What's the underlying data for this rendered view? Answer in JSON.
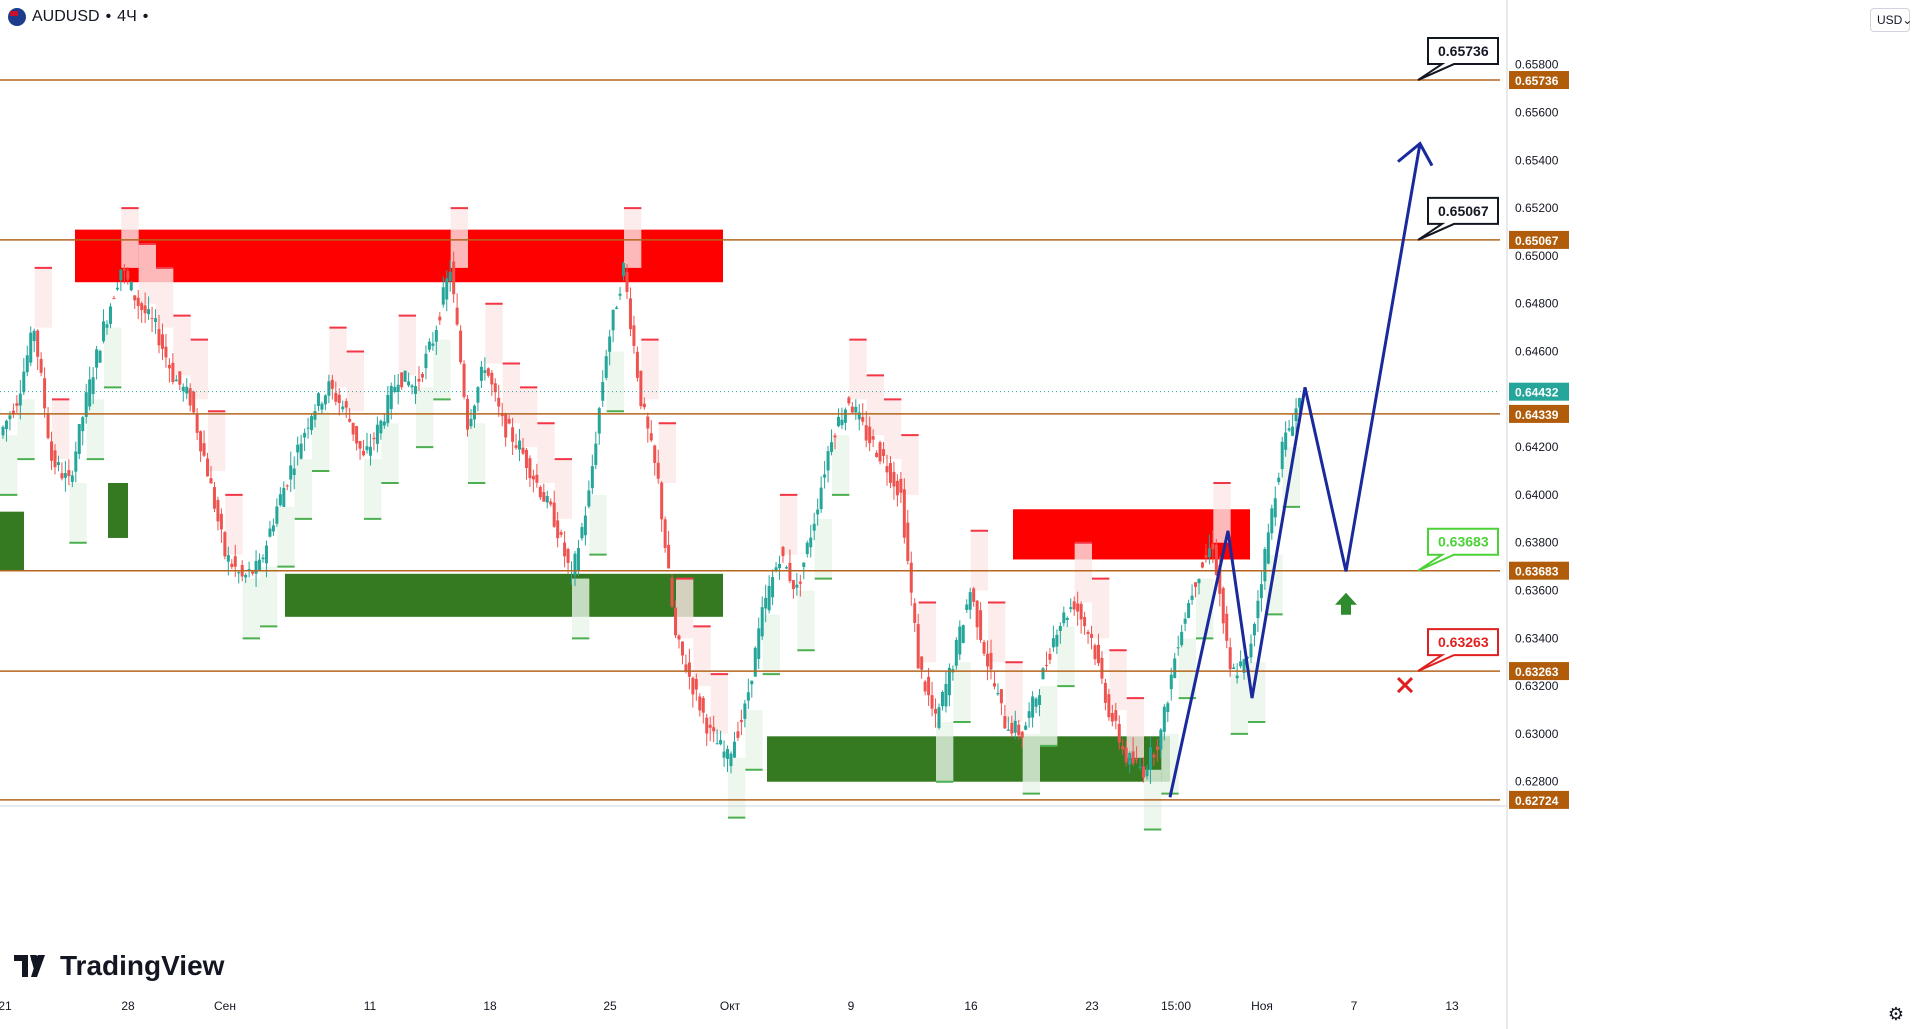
{
  "header": {
    "symbol": "AUDUSD",
    "dot": "•",
    "interval": "4Ч",
    "dot2": "•"
  },
  "currency_button": {
    "label": "USD",
    "icon": "chevron-down-icon"
  },
  "brand": {
    "text": "TradingView",
    "icon": "tradingview-logo-icon"
  },
  "settings": {
    "icon": "gear-icon"
  },
  "colors": {
    "level_line": "#b5651d",
    "level_tag": "#b05c0a",
    "supply": "#ff0000",
    "demand": "#357a21",
    "bull": "#26a69a",
    "bear": "#ef5350",
    "forecast": "#1a2a9c",
    "price_label": "#26a69a",
    "target_up": "#2e8b2e",
    "stop": "#e02020"
  },
  "chart_data": {
    "type": "candlestick",
    "symbol": "AUDUSD",
    "timeframe": "4Ч",
    "y_axis": {
      "min": 0.627,
      "max": 0.659,
      "ticks": [
        "0.65800",
        "0.65600",
        "0.65400",
        "0.65200",
        "0.65000",
        "0.64800",
        "0.64600",
        "0.64200",
        "0.64000",
        "0.63800",
        "0.63600",
        "0.63400",
        "0.63200",
        "0.63000",
        "0.62800"
      ]
    },
    "x_axis": {
      "ticks": [
        "21",
        "28",
        "Сен",
        "11",
        "18",
        "25",
        "Окт",
        "9",
        "16",
        "23",
        "15:00",
        "Ноя",
        "7",
        "13"
      ]
    },
    "current_price": "0.64432",
    "levels": [
      {
        "value": 0.65736,
        "label": "0.65736",
        "callout": "0.65736",
        "callout_style": "target"
      },
      {
        "value": 0.65067,
        "label": "0.65067",
        "callout": "0.65067",
        "callout_style": "target"
      },
      {
        "value": 0.64339,
        "label": "0.64339"
      },
      {
        "value": 0.63683,
        "label": "0.63683",
        "callout": "0.63683",
        "callout_style": "entry"
      },
      {
        "value": 0.63263,
        "label": "0.63263",
        "callout": "0.63263",
        "callout_style": "stop"
      },
      {
        "value": 0.62724,
        "label": "0.62724"
      }
    ],
    "supply_zones": [
      {
        "from": "Aug 25",
        "to": "Sep 28",
        "low": 0.6489,
        "high": 0.6511
      },
      {
        "from": "Oct 18",
        "to": "Oct 31",
        "low": 0.6373,
        "high": 0.6394
      }
    ],
    "demand_zones": [
      {
        "from": "Aug 21",
        "to": "Aug 21",
        "low": 0.6368,
        "high": 0.6393
      },
      {
        "from": "Aug 26",
        "to": "Aug 28",
        "low": 0.6382,
        "high": 0.6405
      },
      {
        "from": "Sep 6",
        "to": "Sep 28",
        "low": 0.6349,
        "high": 0.6367
      },
      {
        "from": "Oct 3",
        "to": "Oct 27",
        "low": 0.628,
        "high": 0.6299
      }
    ],
    "price_path": [
      0.6425,
      0.644,
      0.647,
      0.6415,
      0.6405,
      0.644,
      0.647,
      0.6495,
      0.648,
      0.647,
      0.645,
      0.644,
      0.641,
      0.6375,
      0.6365,
      0.637,
      0.6395,
      0.6415,
      0.6435,
      0.6445,
      0.6435,
      0.6415,
      0.643,
      0.645,
      0.6445,
      0.6465,
      0.6495,
      0.643,
      0.6455,
      0.643,
      0.642,
      0.6405,
      0.639,
      0.6365,
      0.64,
      0.646,
      0.6495,
      0.644,
      0.6405,
      0.634,
      0.632,
      0.63,
      0.629,
      0.631,
      0.635,
      0.6375,
      0.636,
      0.639,
      0.6425,
      0.644,
      0.6425,
      0.6415,
      0.64,
      0.633,
      0.6305,
      0.633,
      0.636,
      0.633,
      0.6305,
      0.63,
      0.632,
      0.6345,
      0.6355,
      0.634,
      0.631,
      0.629,
      0.6285,
      0.63,
      0.634,
      0.6365,
      0.638,
      0.6325,
      0.633,
      0.6375,
      0.642,
      0.644
    ],
    "forecast_path": [
      {
        "t": "Oct 27",
        "v": 0.62735
      },
      {
        "t": "Oct 30",
        "v": 0.6385
      },
      {
        "t": "Nov 1",
        "v": 0.6315
      },
      {
        "t": "Nov 3",
        "v": 0.6445
      },
      {
        "t": "Nov 7",
        "v": 0.6368
      },
      {
        "t": "Nov 10",
        "v": 0.6547
      }
    ]
  }
}
